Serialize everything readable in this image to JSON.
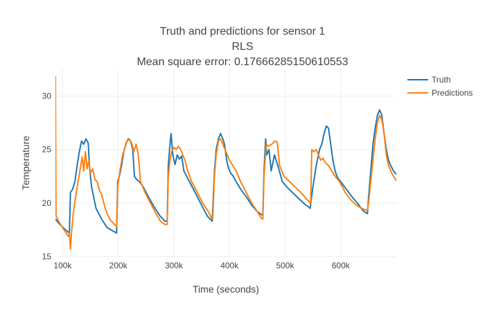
{
  "chart_data": {
    "type": "line",
    "title_lines": [
      "Truth and predictions for sensor 1",
      "RLS",
      "Mean square error: 0.17666285150610553"
    ],
    "xlabel": "Time (seconds)",
    "ylabel": "Temperature",
    "xlim": [
      87000,
      700000
    ],
    "ylim": [
      15,
      32.5
    ],
    "xticks": [
      100000,
      200000,
      300000,
      400000,
      500000,
      600000
    ],
    "xtick_labels": [
      "100k",
      "200k",
      "300k",
      "400k",
      "500k",
      "600k"
    ],
    "yticks": [
      15,
      20,
      25,
      30
    ],
    "ytick_labels": [
      "15",
      "20",
      "25",
      "30"
    ],
    "grid": true,
    "legend_position": "top-right",
    "series": [
      {
        "name": "Truth",
        "color": "#1f77b4",
        "points": [
          [
            87000,
            18.5
          ],
          [
            95000,
            18.0
          ],
          [
            105000,
            17.5
          ],
          [
            112000,
            17.2
          ],
          [
            114000,
            21.0
          ],
          [
            118000,
            21.3
          ],
          [
            122000,
            22.0
          ],
          [
            126000,
            23.5
          ],
          [
            130000,
            24.8
          ],
          [
            134000,
            25.8
          ],
          [
            138000,
            25.5
          ],
          [
            142000,
            26.0
          ],
          [
            146000,
            25.6
          ],
          [
            148000,
            23.5
          ],
          [
            152000,
            21.5
          ],
          [
            160000,
            19.5
          ],
          [
            170000,
            18.5
          ],
          [
            180000,
            17.7
          ],
          [
            190000,
            17.4
          ],
          [
            197000,
            17.2
          ],
          [
            199000,
            22.0
          ],
          [
            202000,
            22.5
          ],
          [
            206000,
            23.5
          ],
          [
            210000,
            24.8
          ],
          [
            214000,
            25.6
          ],
          [
            218000,
            26.0
          ],
          [
            222000,
            25.8
          ],
          [
            226000,
            25.0
          ],
          [
            229000,
            22.5
          ],
          [
            233000,
            22.2
          ],
          [
            238000,
            22.0
          ],
          [
            245000,
            21.5
          ],
          [
            255000,
            20.5
          ],
          [
            265000,
            19.6
          ],
          [
            275000,
            18.8
          ],
          [
            284000,
            18.3
          ],
          [
            288000,
            18.3
          ],
          [
            290000,
            23.5
          ],
          [
            293000,
            25.5
          ],
          [
            295000,
            26.5
          ],
          [
            298000,
            24.5
          ],
          [
            302000,
            23.6
          ],
          [
            306000,
            24.5
          ],
          [
            310000,
            24.1
          ],
          [
            314000,
            24.4
          ],
          [
            318000,
            23.0
          ],
          [
            323000,
            22.5
          ],
          [
            328000,
            22.0
          ],
          [
            338000,
            21.0
          ],
          [
            348000,
            20.0
          ],
          [
            360000,
            18.8
          ],
          [
            369000,
            18.3
          ],
          [
            373000,
            23.0
          ],
          [
            376000,
            25.0
          ],
          [
            380000,
            26.0
          ],
          [
            384000,
            26.5
          ],
          [
            388000,
            26.0
          ],
          [
            391000,
            25.5
          ],
          [
            395000,
            24.0
          ],
          [
            398000,
            23.3
          ],
          [
            402000,
            22.8
          ],
          [
            407000,
            22.5
          ],
          [
            412000,
            22.0
          ],
          [
            420000,
            21.3
          ],
          [
            430000,
            20.6
          ],
          [
            440000,
            19.8
          ],
          [
            450000,
            19.2
          ],
          [
            458000,
            18.9
          ],
          [
            460000,
            18.9
          ],
          [
            462000,
            23.0
          ],
          [
            465000,
            26.0
          ],
          [
            467000,
            24.5
          ],
          [
            471000,
            25.0
          ],
          [
            475000,
            23.0
          ],
          [
            481000,
            24.5
          ],
          [
            487000,
            23.5
          ],
          [
            495000,
            22.0
          ],
          [
            505000,
            21.4
          ],
          [
            515000,
            20.9
          ],
          [
            525000,
            20.4
          ],
          [
            535000,
            19.9
          ],
          [
            543000,
            19.6
          ],
          [
            545000,
            19.5
          ],
          [
            550000,
            21.5
          ],
          [
            556000,
            23.5
          ],
          [
            562000,
            25.0
          ],
          [
            566000,
            25.5
          ],
          [
            570000,
            26.5
          ],
          [
            574000,
            27.2
          ],
          [
            578000,
            27.0
          ],
          [
            582000,
            25.5
          ],
          [
            586000,
            24.0
          ],
          [
            590000,
            23.0
          ],
          [
            594000,
            22.4
          ],
          [
            600000,
            22.0
          ],
          [
            610000,
            21.3
          ],
          [
            620000,
            20.6
          ],
          [
            630000,
            20.0
          ],
          [
            640000,
            19.3
          ],
          [
            648000,
            19.0
          ],
          [
            650000,
            20.5
          ],
          [
            654000,
            23.0
          ],
          [
            658000,
            25.5
          ],
          [
            662000,
            27.0
          ],
          [
            666000,
            28.2
          ],
          [
            670000,
            28.7
          ],
          [
            674000,
            28.2
          ],
          [
            678000,
            26.5
          ],
          [
            682000,
            25.0
          ],
          [
            686000,
            24.0
          ],
          [
            690000,
            23.5
          ],
          [
            695000,
            23.0
          ],
          [
            700000,
            22.7
          ]
        ]
      },
      {
        "name": "Predictions",
        "color": "#ff7f0e",
        "points": [
          [
            87000,
            31.8
          ],
          [
            88000,
            18.8
          ],
          [
            95000,
            18.1
          ],
          [
            105000,
            17.3
          ],
          [
            110000,
            16.9
          ],
          [
            112000,
            17.2
          ],
          [
            114000,
            15.7
          ],
          [
            116000,
            17.3
          ],
          [
            119000,
            19.0
          ],
          [
            123000,
            20.5
          ],
          [
            127000,
            21.8
          ],
          [
            131000,
            23.0
          ],
          [
            135000,
            24.3
          ],
          [
            138000,
            23.0
          ],
          [
            141000,
            24.8
          ],
          [
            144000,
            23.2
          ],
          [
            147000,
            24.0
          ],
          [
            150000,
            22.8
          ],
          [
            154000,
            23.2
          ],
          [
            158000,
            22.2
          ],
          [
            162000,
            22.0
          ],
          [
            166000,
            21.2
          ],
          [
            170000,
            20.8
          ],
          [
            173000,
            20.2
          ],
          [
            176000,
            19.6
          ],
          [
            180000,
            19.0
          ],
          [
            186000,
            18.4
          ],
          [
            193000,
            18.0
          ],
          [
            197000,
            17.8
          ],
          [
            199000,
            21.5
          ],
          [
            203000,
            23.0
          ],
          [
            208000,
            24.5
          ],
          [
            212000,
            25.2
          ],
          [
            216000,
            25.8
          ],
          [
            220000,
            26.0
          ],
          [
            224000,
            25.6
          ],
          [
            228000,
            24.8
          ],
          [
            232000,
            25.5
          ],
          [
            236000,
            24.5
          ],
          [
            240000,
            22.0
          ],
          [
            248000,
            21.0
          ],
          [
            258000,
            20.0
          ],
          [
            268000,
            19.0
          ],
          [
            276000,
            18.3
          ],
          [
            284000,
            18.0
          ],
          [
            288000,
            18.0
          ],
          [
            290000,
            22.5
          ],
          [
            293000,
            24.0
          ],
          [
            296000,
            24.8
          ],
          [
            300000,
            25.2
          ],
          [
            304000,
            25.0
          ],
          [
            308000,
            25.3
          ],
          [
            312000,
            25.0
          ],
          [
            316000,
            24.5
          ],
          [
            320000,
            24.0
          ],
          [
            325000,
            23.0
          ],
          [
            332000,
            22.0
          ],
          [
            342000,
            21.0
          ],
          [
            352000,
            20.0
          ],
          [
            362000,
            19.2
          ],
          [
            368000,
            18.6
          ],
          [
            370000,
            18.6
          ],
          [
            373000,
            22.5
          ],
          [
            376000,
            24.5
          ],
          [
            380000,
            25.8
          ],
          [
            384000,
            26.0
          ],
          [
            388000,
            25.5
          ],
          [
            392000,
            25.0
          ],
          [
            396000,
            24.5
          ],
          [
            400000,
            24.0
          ],
          [
            406000,
            23.5
          ],
          [
            412000,
            23.0
          ],
          [
            420000,
            22.0
          ],
          [
            430000,
            21.0
          ],
          [
            440000,
            20.0
          ],
          [
            450000,
            19.2
          ],
          [
            457000,
            18.6
          ],
          [
            460000,
            18.5
          ],
          [
            462000,
            22.5
          ],
          [
            466000,
            25.5
          ],
          [
            470000,
            25.3
          ],
          [
            476000,
            25.5
          ],
          [
            482000,
            25.8
          ],
          [
            486000,
            25.7
          ],
          [
            490000,
            23.5
          ],
          [
            498000,
            22.5
          ],
          [
            508000,
            22.0
          ],
          [
            518000,
            21.5
          ],
          [
            528000,
            21.0
          ],
          [
            538000,
            20.4
          ],
          [
            546000,
            20.0
          ],
          [
            548000,
            25.0
          ],
          [
            552000,
            24.8
          ],
          [
            556000,
            25.0
          ],
          [
            560000,
            24.5
          ],
          [
            564000,
            24.0
          ],
          [
            568000,
            24.2
          ],
          [
            572000,
            23.8
          ],
          [
            578000,
            23.5
          ],
          [
            584000,
            23.0
          ],
          [
            590000,
            22.5
          ],
          [
            598000,
            22.0
          ],
          [
            608000,
            21.0
          ],
          [
            618000,
            20.3
          ],
          [
            628000,
            19.8
          ],
          [
            638000,
            19.5
          ],
          [
            648000,
            19.3
          ],
          [
            650000,
            20.0
          ],
          [
            654000,
            22.0
          ],
          [
            658000,
            24.0
          ],
          [
            662000,
            26.0
          ],
          [
            666000,
            27.5
          ],
          [
            670000,
            28.2
          ],
          [
            674000,
            27.8
          ],
          [
            678000,
            26.5
          ],
          [
            682000,
            24.5
          ],
          [
            686000,
            23.5
          ],
          [
            690000,
            23.0
          ],
          [
            695000,
            22.5
          ],
          [
            700000,
            22.1
          ]
        ]
      }
    ]
  }
}
